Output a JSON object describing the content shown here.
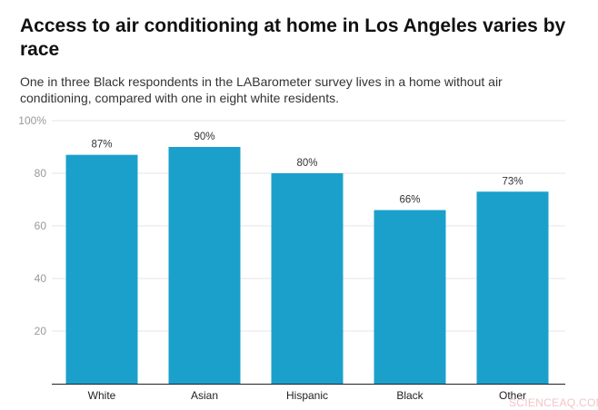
{
  "chart_data": {
    "type": "bar",
    "title": "Access to air conditioning at home in Los Angeles varies by race",
    "subtitle": "One in three Black respondents in the LABarometer survey lives in a home without air conditioning, compared with one in eight white residents.",
    "categories": [
      "White",
      "Asian",
      "Hispanic",
      "Black",
      "Other"
    ],
    "values": [
      87,
      90,
      80,
      66,
      73
    ],
    "data_labels": [
      "87%",
      "90%",
      "80%",
      "66%",
      "73%"
    ],
    "yticks": [
      20,
      40,
      60,
      80,
      100
    ],
    "ytick_labels": [
      "20",
      "40",
      "60",
      "80",
      "100%"
    ],
    "ylim": [
      0,
      100
    ],
    "xlabel": "",
    "ylabel": "",
    "grid": true,
    "bar_color": "#1ba0cc"
  },
  "watermark": "SCIENCEAQ.COM"
}
